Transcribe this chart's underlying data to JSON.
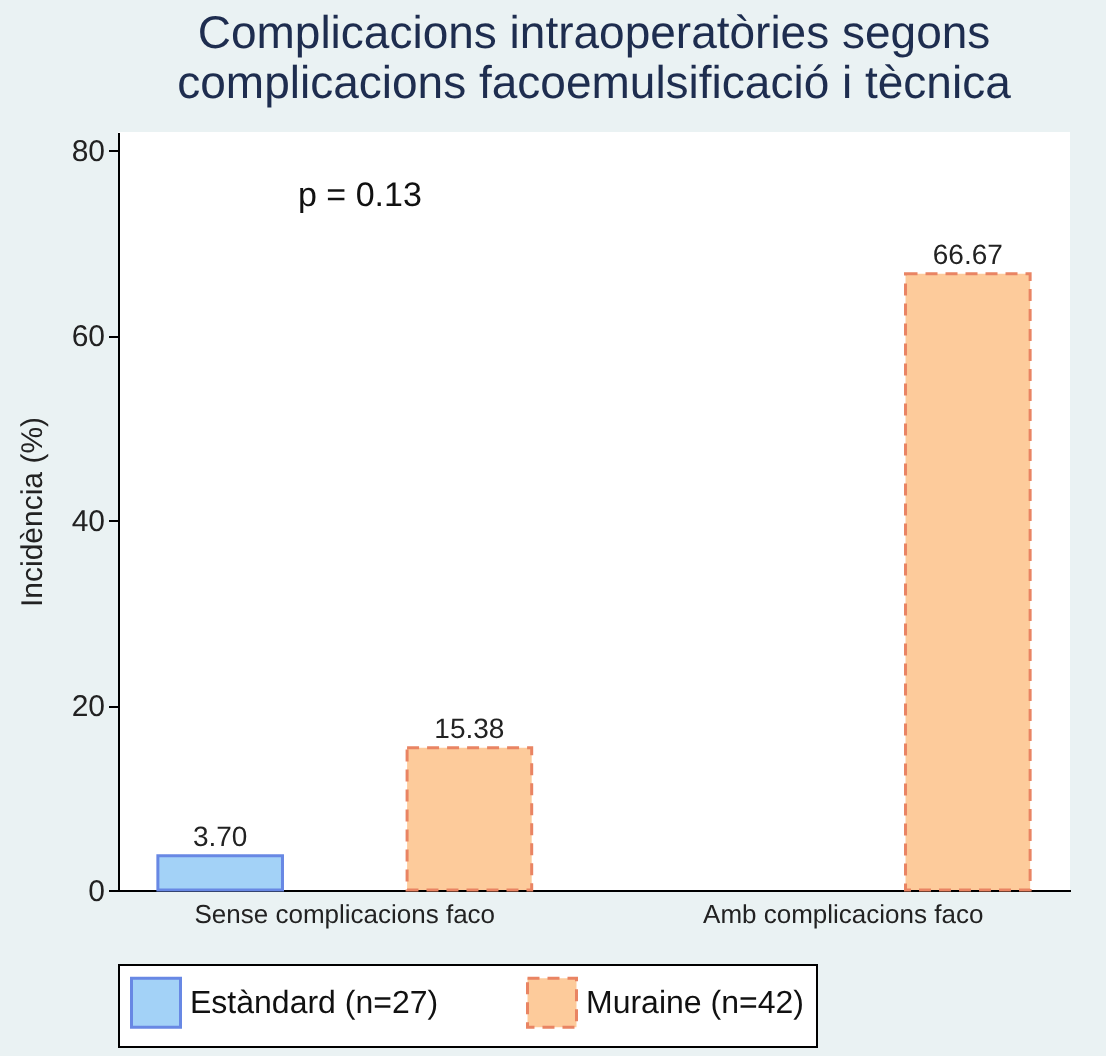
{
  "chart_data": {
    "type": "bar",
    "title": [
      "Complicacions intraoperatòries segons",
      "complicacions facoemulsificació i tècnica"
    ],
    "ylabel": "Incidència (%)",
    "categories": [
      "Sense complicacions faco",
      "Amb complicacions faco"
    ],
    "series": [
      {
        "name": "Estàndard (n=27)",
        "color": "#a3d2f7",
        "values": [
          3.7,
          null
        ],
        "value_labels": [
          "3.70",
          null
        ]
      },
      {
        "name": "Muraine (n=42)",
        "color": "#fdcb9b",
        "line_style": "dashed",
        "values": [
          15.38,
          66.67
        ],
        "value_labels": [
          "15.38",
          "66.67"
        ]
      }
    ],
    "ylim": [
      0,
      82
    ],
    "yticks": [
      0,
      20,
      40,
      60,
      80
    ],
    "annotations": [
      "p = 0.13"
    ],
    "legend": "bottom",
    "grid": false
  }
}
